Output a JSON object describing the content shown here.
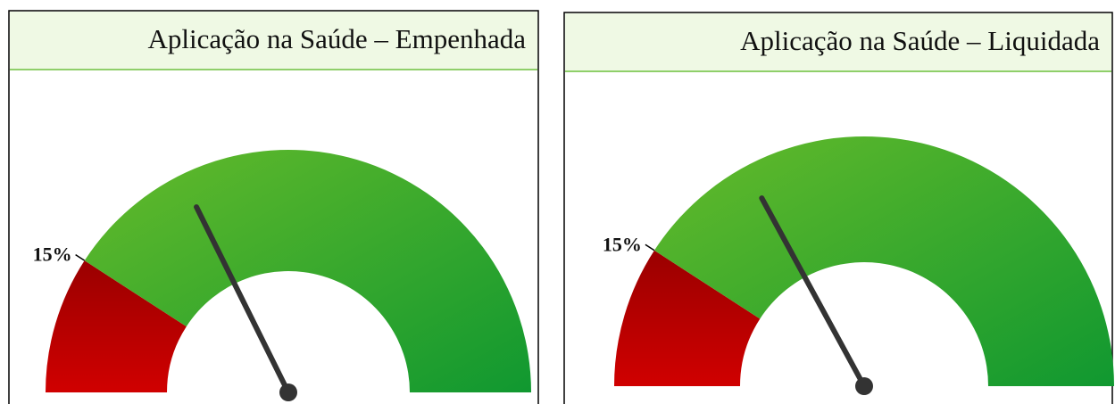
{
  "chart_data": [
    {
      "type": "gauge",
      "title": "Aplicação na Saúde – Empenhada",
      "value": 29,
      "ylim": [
        0,
        82
      ],
      "yticks": [
        {
          "value": 15,
          "label": "15%"
        }
      ],
      "colors": [
        "#c00000",
        "#3aa53a"
      ],
      "needle_color": "#333333"
    },
    {
      "type": "gauge",
      "title": "Aplicação na Saúde – Liquidada",
      "value": 28,
      "ylim": [
        0,
        82
      ],
      "yticks": [
        {
          "value": 15,
          "label": "15%"
        }
      ],
      "colors": [
        "#c00000",
        "#3aa53a"
      ],
      "needle_color": "#333333"
    }
  ]
}
